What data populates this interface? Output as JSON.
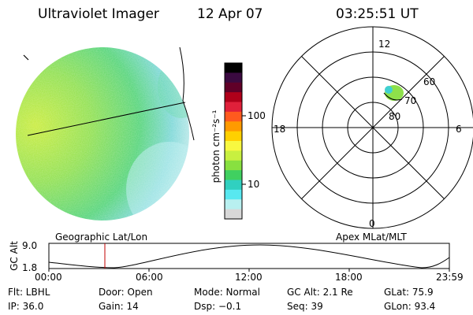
{
  "header": {
    "title": "Ultraviolet Imager",
    "date": "12 Apr 07",
    "time": "03:25:51 UT"
  },
  "colorbar": {
    "label": "photon cm⁻²s⁻¹",
    "ticks": [
      "100",
      "10"
    ],
    "colors": [
      "#000000",
      "#3a0a40",
      "#600028",
      "#b0001a",
      "#e0203a",
      "#ff5a1e",
      "#ff9a00",
      "#ffd000",
      "#f8f840",
      "#c8f040",
      "#88e040",
      "#40d060",
      "#30d0c0",
      "#58e8f0",
      "#b8f0f0",
      "#d8d8d8"
    ]
  },
  "polar": {
    "top_label": "12",
    "bottom_label": "0",
    "left_label": "18",
    "right_label": "6",
    "ring_labels": [
      "60",
      "70",
      "80"
    ]
  },
  "orbit": {
    "left_title": "Geographic Lat/Lon",
    "right_title": "Apex MLat/MLT",
    "axis_label": "GC Alt",
    "y_max": "9.0",
    "y_min": "1.8",
    "time_ticks": [
      "00:00",
      "06:00",
      "12:00",
      "18:00",
      "23:59"
    ]
  },
  "info": {
    "filter": "Flt: LBHL",
    "ip": "IP: 36.0",
    "door": "Door: Open",
    "gain": "Gain: 14",
    "mode": "Mode: Normal",
    "dsp": "Dsp:   −0.1",
    "gc_alt": "GC Alt: 2.1 Re",
    "seq": "Seq: 39",
    "glat": "GLat:  75.9",
    "glon": "GLon:  93.4"
  }
}
